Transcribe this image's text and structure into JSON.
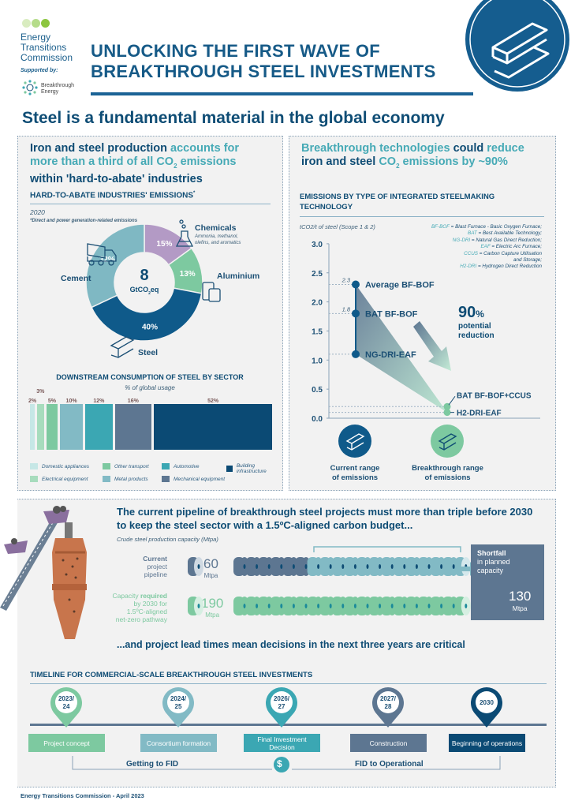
{
  "header": {
    "org_line1": "Energy",
    "org_line2": "Transitions",
    "org_line3": "Commission",
    "supported_by": "Supported by:",
    "partner_line1": "Breakthrough",
    "partner_line2": "Energy",
    "title_line1": "UNLOCKING THE FIRST WAVE OF",
    "title_line2": "BREAKTHROUGH STEEL INVESTMENTS",
    "subtitle": "Steel is a fundamental material in the global economy"
  },
  "colors": {
    "navy": "#0b4a74",
    "teal": "#3ba7b3",
    "light_teal": "#82bac5",
    "green": "#7dc9a0",
    "light_green": "#a7dcbd",
    "purple": "#b39ac5",
    "slate": "#5d7691",
    "pale": "#c6e7e6",
    "copper": "#c8754c"
  },
  "left": {
    "headline": {
      "a": "Iron and steel production",
      "b": "accounts for",
      "c": "more than a third of all CO",
      "c_sub": "2",
      "d": "emissions",
      "e": "within 'hard-to-abate' industries"
    },
    "section_title": "HARD-TO-ABATE INDUSTRIES' EMISSIONS",
    "section_mark": "*",
    "year": "2020",
    "footnote": "*Direct and power generation-related emissions",
    "center_value": "8",
    "center_unit": "GtCO",
    "center_unit_sub": "2",
    "center_unit_end": "eq",
    "chemicals_sub": "Ammonia, methanol,",
    "chemicals_sub2": "olefins, and aromatics"
  },
  "right": {
    "headline": {
      "a": "Breakthrough technologies",
      "b": "could",
      "c": "reduce",
      "d": "iron and steel",
      "e": "CO",
      "e_sub": "2",
      "f": "emissions by ~90%"
    },
    "section_title_1": "EMISSIONS BY TYPE OF INTEGRATED STEELMAKING",
    "section_title_2": "TECHNOLOGY",
    "glossary": [
      {
        "abbr": "BF-BOF",
        "def": " = Blast Furnace - Basic Oxygen Furnace;"
      },
      {
        "abbr": "BAT",
        "def": " = Best Available Technology;"
      },
      {
        "abbr": "NG-DRI",
        "def": " = Natural Gas Direct Reduction;"
      },
      {
        "abbr": "EAF",
        "def": " = Electric Arc Furnace;"
      },
      {
        "abbr": "CCUS",
        "def": " = Carbon Capture Utilisation"
      },
      {
        "abbr": "",
        "def": "and Storage;"
      },
      {
        "abbr": "H2-DRI",
        "def": " = Hydrogen Direct Reduction"
      }
    ],
    "reduction_value": "90",
    "reduction_pct": "%",
    "reduction_line1": "potential",
    "reduction_line2": "reduction",
    "current_label_1": "Current range",
    "current_label_2": "of emissions",
    "breakthrough_label_1": "Breakthrough range",
    "breakthrough_label_2": "of emissions"
  },
  "chart_data": [
    {
      "type": "pie",
      "title": "HARD-TO-ABATE INDUSTRIES' EMISSIONS",
      "subtitle": "2020",
      "total": "8 GtCO2eq",
      "slices": [
        {
          "label": "Chemicals",
          "value": 15,
          "color": "#b39ac5"
        },
        {
          "label": "Aluminium",
          "value": 13,
          "color": "#7dc9a0"
        },
        {
          "label": "Steel",
          "value": 40,
          "color": "#0f5a8a"
        },
        {
          "label": "Cement",
          "value": 32,
          "color": "#7fb8c3"
        }
      ]
    },
    {
      "type": "bar",
      "title": "DOWNSTREAM CONSUMPTION OF STEEL BY SECTOR",
      "subtitle": "% of global usage",
      "categories": [
        "Domestic appliances",
        "Electrical equipment",
        "Other transport",
        "Metal products",
        "Automotive",
        "Mechanical equipment",
        "Building infrastructure"
      ],
      "values": [
        2,
        3,
        5,
        10,
        12,
        16,
        52
      ],
      "labels": [
        "2%",
        "3%",
        "5%",
        "10%",
        "12%",
        "16%",
        "52%"
      ],
      "colors": [
        "#c6e7e6",
        "#a7dcbd",
        "#7dc9a0",
        "#82bac5",
        "#3ba7b3",
        "#5d7691",
        "#0b4a74"
      ]
    },
    {
      "type": "scatter",
      "title": "EMISSIONS BY TYPE OF INTEGRATED STEELMAKING TECHNOLOGY",
      "ylabel": "tCO2/t of steel (Scope 1 & 2)",
      "ylim": [
        0,
        3.0
      ],
      "yticks": [
        "0.0",
        "0.5",
        "1.0",
        "1.5",
        "2.0",
        "2.5",
        "3.0"
      ],
      "points": [
        {
          "label": "Average BF-BOF",
          "group": "current",
          "value": 2.3,
          "value_label": "2.3"
        },
        {
          "label": "BAT BF-BOF",
          "group": "current",
          "value": 1.8,
          "value_label": "1.8"
        },
        {
          "label": "NG-DRI-EAF",
          "group": "current",
          "value": 1.1
        },
        {
          "label": "BAT BF-BOF+CCUS",
          "group": "breakthrough",
          "value": 0.2
        },
        {
          "label": "H2-DRI-EAF",
          "group": "breakthrough",
          "value": 0.1
        }
      ]
    }
  ],
  "pipeline": {
    "headline_1": "The current pipeline of breakthrough steel projects must more than triple before 2030",
    "headline_2": "to keep the steel sector with a 1.5ºC-aligned carbon budget...",
    "unit_note": "Crude steel production capacity (Mtpa)",
    "current_label": [
      "Current",
      "project",
      "pipeline"
    ],
    "current_value": "60",
    "current_unit": "Mtpa",
    "required_label_a": "Capacity ",
    "required_label_b": "required",
    "required_label_rest": [
      "by 2030 for",
      "1.5ºC-aligned",
      "net-zero pathway"
    ],
    "required_value": "190",
    "required_unit": "Mtpa",
    "shortfall_title": "Shortfall",
    "shortfall_sub1": "in planned",
    "shortfall_sub2": "capacity",
    "shortfall_value": "130",
    "shortfall_unit": "Mtpa",
    "closing": "...and project lead times mean decisions in the next three years are critical"
  },
  "timeline": {
    "title": "TIMELINE FOR COMMERCIAL-SCALE BREAKTHROUGH STEEL INVESTMENTS",
    "steps": [
      {
        "year1": "2023/",
        "year2": "24",
        "label": "Project concept",
        "color": "#7dc9a0"
      },
      {
        "year1": "2024/",
        "year2": "25",
        "label": "Consortium formation",
        "color": "#82bac5"
      },
      {
        "year1": "2026/",
        "year2": "27",
        "label": "Final Investment Decision",
        "color": "#3ba7b3"
      },
      {
        "year1": "2027/",
        "year2": "28",
        "label": "Construction",
        "color": "#5d7691"
      },
      {
        "year1": "2030",
        "year2": "",
        "label": "Beginning of operations",
        "color": "#0b4a74"
      }
    ],
    "phase1": "Getting to FID",
    "phase2": "FID to Operational",
    "dollar": "$"
  },
  "footer": "Energy Transitions Commission - April 2023"
}
